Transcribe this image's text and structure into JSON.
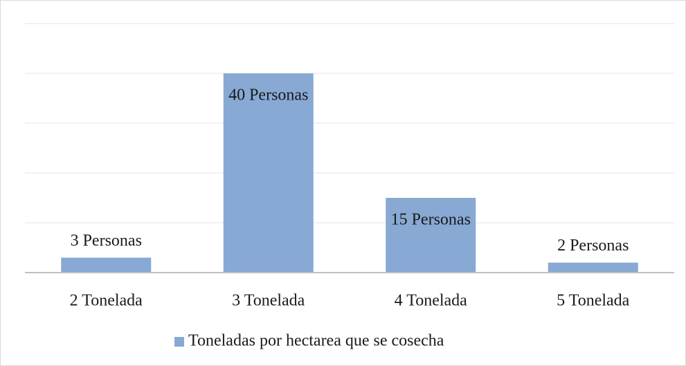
{
  "chart_data": {
    "type": "bar",
    "categories": [
      "2 Tonelada",
      "3 Tonelada",
      "4 Tonelada",
      "5 Tonelada"
    ],
    "series": [
      {
        "name": "Toneladas por hectarea que se cosecha",
        "color": "#87a9d4",
        "values": [
          3,
          40,
          15,
          2
        ],
        "value_labels": [
          "3 Personas",
          "40 Personas",
          "15 Personas",
          "2 Personas"
        ]
      }
    ],
    "ylim": [
      0,
      50
    ],
    "yticks": [
      0,
      10,
      20,
      30,
      40,
      50
    ],
    "grid": true,
    "legend": "bottom"
  }
}
